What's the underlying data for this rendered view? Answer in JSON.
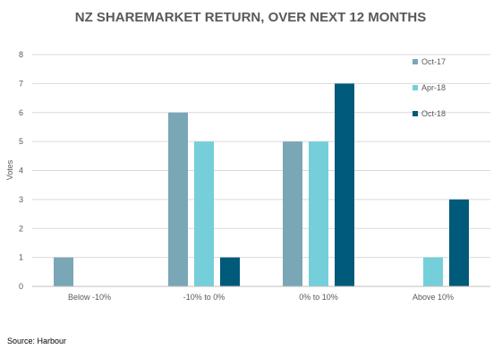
{
  "chart_data": {
    "type": "bar",
    "title": "NZ SHAREMARKET RETURN, OVER NEXT 12 MONTHS",
    "xlabel": "",
    "ylabel": "Votes",
    "ylim": [
      0,
      8
    ],
    "yticks": [
      "0",
      "1",
      "2",
      "3",
      "4",
      "5",
      "6",
      "7",
      "8"
    ],
    "grid": true,
    "legend_position": "top-right",
    "categories": [
      "Below -10%",
      "-10% to 0%",
      "0% to 10%",
      "Above 10%"
    ],
    "series": [
      {
        "name": "Oct-17",
        "color": "#7AA7B6",
        "values": [
          1,
          6,
          5,
          0
        ]
      },
      {
        "name": "Apr-18",
        "color": "#74CFDA",
        "values": [
          0,
          5,
          5,
          1
        ]
      },
      {
        "name": "Oct-18",
        "color": "#005A7A",
        "values": [
          0,
          1,
          7,
          3
        ]
      }
    ],
    "source": "Source: Harbour"
  }
}
